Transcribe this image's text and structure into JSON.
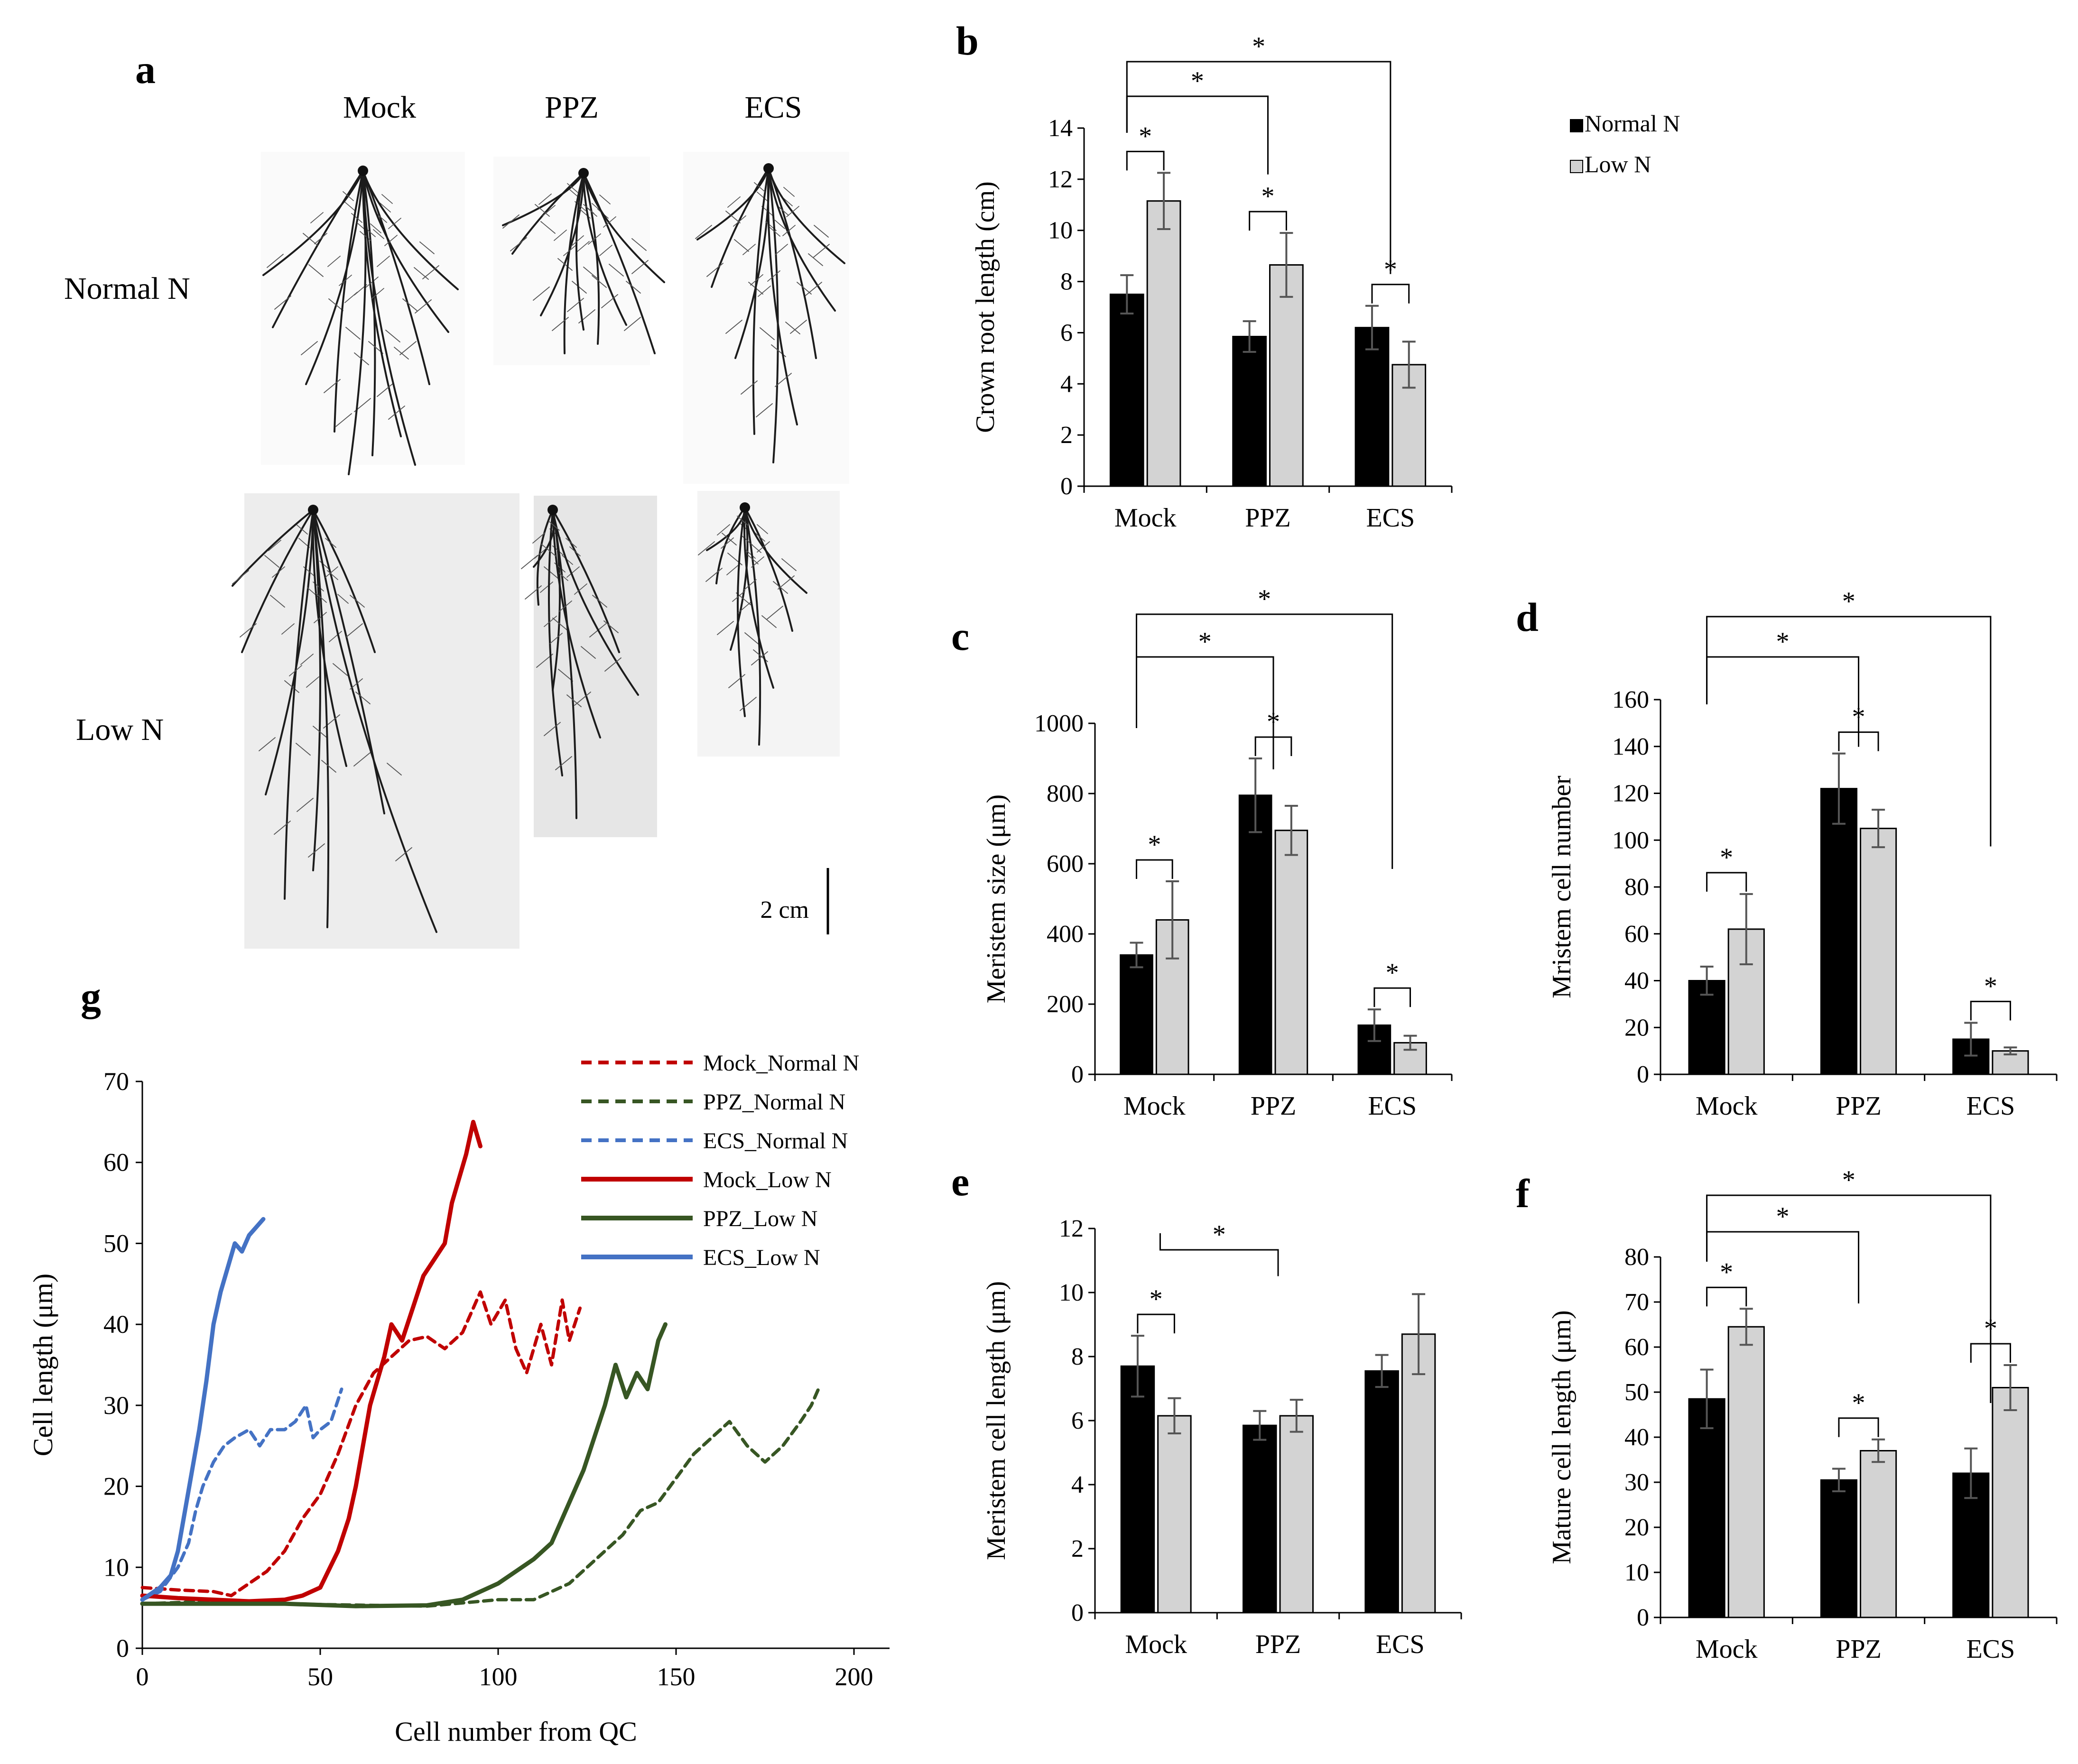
{
  "colors": {
    "normal_bar": "#000000",
    "low_bar": "#d3d3d3",
    "err": "#555555",
    "mock": "#c00000",
    "ppz": "#375623",
    "ecs": "#4472c4"
  },
  "panel_letters": {
    "a": "a",
    "b": "b",
    "c": "c",
    "d": "d",
    "e": "e",
    "f": "f",
    "g": "g"
  },
  "photo": {
    "columns": [
      "Mock",
      "PPZ",
      "ECS"
    ],
    "rows": [
      "Normal N",
      "Low N"
    ],
    "scale_label": "2 cm"
  },
  "legend_bars": {
    "normal": "Normal N",
    "low": "Low N"
  },
  "significance_mark": "*",
  "chart_data": [
    {
      "id": "b",
      "type": "bar",
      "categories": [
        "Mock",
        "PPZ",
        "ECS"
      ],
      "series": [
        {
          "name": "Normal N",
          "values": [
            7.5,
            5.85,
            6.2
          ],
          "errors": [
            0.75,
            0.6,
            0.85
          ]
        },
        {
          "name": "Low N",
          "values": [
            11.15,
            8.65,
            4.75
          ],
          "errors": [
            1.1,
            1.25,
            0.9
          ]
        }
      ],
      "ylabel": "Crown root length (cm)",
      "ylim": [
        0,
        14
      ],
      "yticks": [
        0,
        2,
        4,
        6,
        8,
        10,
        12,
        14
      ],
      "pair_significance": [
        true,
        true,
        true
      ],
      "comparisons": [
        {
          "from": "Mock",
          "to": "PPZ"
        },
        {
          "from": "Mock",
          "to": "ECS"
        }
      ]
    },
    {
      "id": "c",
      "type": "bar",
      "categories": [
        "Mock",
        "PPZ",
        "ECS"
      ],
      "series": [
        {
          "name": "Normal N",
          "values": [
            340,
            795,
            140
          ],
          "errors": [
            35,
            105,
            45
          ]
        },
        {
          "name": "Low N",
          "values": [
            440,
            695,
            90
          ],
          "errors": [
            110,
            70,
            20
          ]
        }
      ],
      "ylabel": "Meristem size (μm)",
      "ylim": [
        0,
        1000
      ],
      "yticks": [
        0,
        200,
        400,
        600,
        800,
        1000
      ],
      "pair_significance": [
        true,
        true,
        true
      ],
      "comparisons": [
        {
          "from": "Mock",
          "to": "PPZ"
        },
        {
          "from": "Mock",
          "to": "ECS"
        }
      ]
    },
    {
      "id": "d",
      "type": "bar",
      "categories": [
        "Mock",
        "PPZ",
        "ECS"
      ],
      "series": [
        {
          "name": "Normal N",
          "values": [
            40,
            122,
            15
          ],
          "errors": [
            6,
            15,
            7
          ]
        },
        {
          "name": "Low N",
          "values": [
            62,
            105,
            10
          ],
          "errors": [
            15,
            8,
            1.5
          ]
        }
      ],
      "ylabel": "Mristem cell number",
      "ylim": [
        0,
        160
      ],
      "yticks": [
        0,
        20,
        40,
        60,
        80,
        100,
        120,
        140,
        160
      ],
      "pair_significance": [
        true,
        true,
        true
      ],
      "comparisons": [
        {
          "from": "Mock",
          "to": "PPZ"
        },
        {
          "from": "Mock",
          "to": "ECS"
        }
      ]
    },
    {
      "id": "e",
      "type": "bar",
      "categories": [
        "Mock",
        "PPZ",
        "ECS"
      ],
      "series": [
        {
          "name": "Normal N",
          "values": [
            7.7,
            5.85,
            7.55
          ],
          "errors": [
            0.95,
            0.45,
            0.5
          ]
        },
        {
          "name": "Low N",
          "values": [
            6.15,
            6.15,
            8.7
          ],
          "errors": [
            0.55,
            0.5,
            1.25
          ]
        }
      ],
      "ylabel": "Meristem cell length (μm)",
      "ylim": [
        0,
        12
      ],
      "yticks": [
        0,
        2,
        4,
        6,
        8,
        10,
        12
      ],
      "pair_significance": [
        true,
        false,
        false
      ],
      "comparisons": [
        {
          "from": "Mock_low",
          "to": "PPZ"
        }
      ]
    },
    {
      "id": "f",
      "type": "bar",
      "categories": [
        "Mock",
        "PPZ",
        "ECS"
      ],
      "series": [
        {
          "name": "Normal N",
          "values": [
            48.5,
            30.5,
            32
          ],
          "errors": [
            6.5,
            2.5,
            5.5
          ]
        },
        {
          "name": "Low N",
          "values": [
            64.5,
            37,
            51
          ],
          "errors": [
            4,
            2.5,
            5
          ]
        }
      ],
      "ylabel": "Mature cell length (μm)",
      "ylim": [
        0,
        80
      ],
      "yticks": [
        0,
        10,
        20,
        30,
        40,
        50,
        60,
        70,
        80
      ],
      "pair_significance": [
        true,
        true,
        true
      ],
      "comparisons": [
        {
          "from": "Mock",
          "to": "PPZ"
        },
        {
          "from": "Mock",
          "to": "ECS"
        }
      ]
    },
    {
      "id": "g",
      "type": "line",
      "xlabel": "Cell number from QC",
      "ylabel": "Cell length (μm)",
      "xlim": [
        0,
        210
      ],
      "ylim": [
        0,
        70
      ],
      "xticks": [
        0,
        50,
        100,
        150,
        200
      ],
      "yticks": [
        0,
        10,
        20,
        30,
        40,
        50,
        60,
        70
      ],
      "series": [
        {
          "name": "Mock_Normal N",
          "color": "mock",
          "dash": true,
          "points": [
            [
              0,
              7.5
            ],
            [
              10,
              7.2
            ],
            [
              20,
              7
            ],
            [
              25,
              6.5
            ],
            [
              30,
              8
            ],
            [
              35,
              9.5
            ],
            [
              40,
              12
            ],
            [
              45,
              16
            ],
            [
              50,
              19
            ],
            [
              55,
              24
            ],
            [
              60,
              30
            ],
            [
              65,
              34
            ],
            [
              70,
              36
            ],
            [
              75,
              38
            ],
            [
              80,
              38.5
            ],
            [
              85,
              37
            ],
            [
              90,
              39
            ],
            [
              95,
              44
            ],
            [
              98,
              40
            ],
            [
              102,
              43
            ],
            [
              105,
              37
            ],
            [
              108,
              34
            ],
            [
              112,
              40
            ],
            [
              115,
              35
            ],
            [
              118,
              43
            ],
            [
              120,
              38
            ],
            [
              123,
              42
            ]
          ]
        },
        {
          "name": "PPZ_Normal N",
          "color": "ppz",
          "dash": true,
          "points": [
            [
              0,
              5.5
            ],
            [
              20,
              5.8
            ],
            [
              50,
              5.4
            ],
            [
              80,
              5.2
            ],
            [
              100,
              6
            ],
            [
              110,
              6
            ],
            [
              115,
              7
            ],
            [
              120,
              8
            ],
            [
              125,
              10
            ],
            [
              130,
              12
            ],
            [
              135,
              14
            ],
            [
              140,
              17
            ],
            [
              145,
              18
            ],
            [
              150,
              21
            ],
            [
              155,
              24
            ],
            [
              160,
              26
            ],
            [
              165,
              28
            ],
            [
              170,
              25
            ],
            [
              175,
              23
            ],
            [
              180,
              25
            ],
            [
              185,
              28
            ],
            [
              188,
              30
            ],
            [
              190,
              32
            ]
          ]
        },
        {
          "name": "ECS_Normal N",
          "color": "ecs",
          "dash": true,
          "points": [
            [
              0,
              6
            ],
            [
              5,
              7
            ],
            [
              10,
              10
            ],
            [
              13,
              13
            ],
            [
              15,
              17
            ],
            [
              17,
              20
            ],
            [
              20,
              23
            ],
            [
              23,
              25
            ],
            [
              26,
              26
            ],
            [
              30,
              27
            ],
            [
              33,
              25
            ],
            [
              36,
              27
            ],
            [
              40,
              27
            ],
            [
              43,
              28
            ],
            [
              46,
              30
            ],
            [
              48,
              26
            ],
            [
              50,
              27
            ],
            [
              53,
              28
            ],
            [
              56,
              32
            ]
          ]
        },
        {
          "name": "Mock_Low N",
          "color": "mock",
          "dash": false,
          "points": [
            [
              0,
              6.5
            ],
            [
              10,
              6.2
            ],
            [
              20,
              6
            ],
            [
              30,
              5.8
            ],
            [
              40,
              6
            ],
            [
              45,
              6.5
            ],
            [
              50,
              7.5
            ],
            [
              55,
              12
            ],
            [
              58,
              16
            ],
            [
              60,
              20
            ],
            [
              62,
              25
            ],
            [
              64,
              30
            ],
            [
              66,
              33
            ],
            [
              68,
              36
            ],
            [
              70,
              40
            ],
            [
              73,
              38
            ],
            [
              76,
              42
            ],
            [
              79,
              46
            ],
            [
              82,
              48
            ],
            [
              85,
              50
            ],
            [
              87,
              55
            ],
            [
              89,
              58
            ],
            [
              91,
              61
            ],
            [
              93,
              65
            ],
            [
              95,
              62
            ]
          ]
        },
        {
          "name": "PPZ_Low N",
          "color": "ppz",
          "dash": false,
          "points": [
            [
              0,
              5.5
            ],
            [
              20,
              5.5
            ],
            [
              40,
              5.5
            ],
            [
              60,
              5.2
            ],
            [
              80,
              5.3
            ],
            [
              90,
              6
            ],
            [
              95,
              7
            ],
            [
              100,
              8
            ],
            [
              105,
              9.5
            ],
            [
              110,
              11
            ],
            [
              115,
              13
            ],
            [
              118,
              16
            ],
            [
              121,
              19
            ],
            [
              124,
              22
            ],
            [
              127,
              26
            ],
            [
              130,
              30
            ],
            [
              133,
              35
            ],
            [
              136,
              31
            ],
            [
              139,
              34
            ],
            [
              142,
              32
            ],
            [
              145,
              38
            ],
            [
              147,
              40
            ]
          ]
        },
        {
          "name": "ECS_Low N",
          "color": "ecs",
          "dash": false,
          "points": [
            [
              0,
              6
            ],
            [
              5,
              7.5
            ],
            [
              8,
              9
            ],
            [
              10,
              12
            ],
            [
              12,
              17
            ],
            [
              14,
              22
            ],
            [
              16,
              27
            ],
            [
              18,
              33
            ],
            [
              20,
              40
            ],
            [
              22,
              44
            ],
            [
              24,
              47
            ],
            [
              26,
              50
            ],
            [
              28,
              49
            ],
            [
              30,
              51
            ],
            [
              32,
              52
            ],
            [
              34,
              53
            ]
          ]
        }
      ]
    }
  ]
}
